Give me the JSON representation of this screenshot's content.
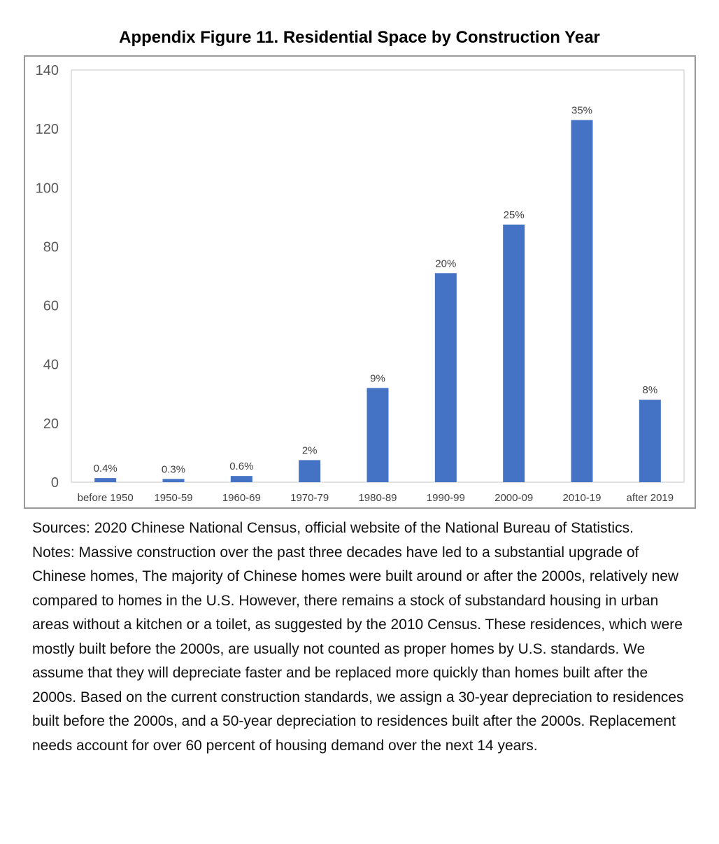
{
  "chart_data": {
    "type": "bar",
    "title": "Appendix Figure 11. Residential Space by Construction Year",
    "xlabel": "",
    "ylabel": "",
    "ylim": [
      0,
      140
    ],
    "yticks": [
      0,
      20,
      40,
      60,
      80,
      100,
      120,
      140
    ],
    "categories": [
      "before 1950",
      "1950-59",
      "1960-69",
      "1970-79",
      "1980-89",
      "1990-99",
      "2000-09",
      "2010-19",
      "after 2019"
    ],
    "values": [
      1.4,
      1.1,
      2.1,
      7.5,
      32,
      71,
      87.5,
      123,
      28
    ],
    "data_labels": [
      "0.4%",
      "0.3%",
      "0.6%",
      "2%",
      "9%",
      "20%",
      "25%",
      "35%",
      "8%"
    ],
    "bar_color": "#4472c4",
    "grid": false,
    "legend": "none"
  },
  "caption": {
    "sources": "Sources: 2020 Chinese National Census, official website of the National Bureau of Statistics.",
    "notes": "Notes: Massive construction over the past three decades have led to a substantial upgrade of Chinese homes, The majority of Chinese homes were built around or after the 2000s, relatively new compared to homes in the U.S. However, there remains a stock of substandard housing in urban areas without a kitchen or a toilet, as suggested by the 2010 Census. These residences, which were mostly built before the 2000s, are usually not counted as proper homes by U.S. standards. We assume that they will depreciate faster and be replaced more quickly than homes built after the 2000s. Based on the current construction standards, we assign a 30-year depreciation to residences built before the 2000s, and a 50-year depreciation to residences built after the 2000s. Replacement needs account for over 60 percent of housing demand over the next 14 years."
  }
}
